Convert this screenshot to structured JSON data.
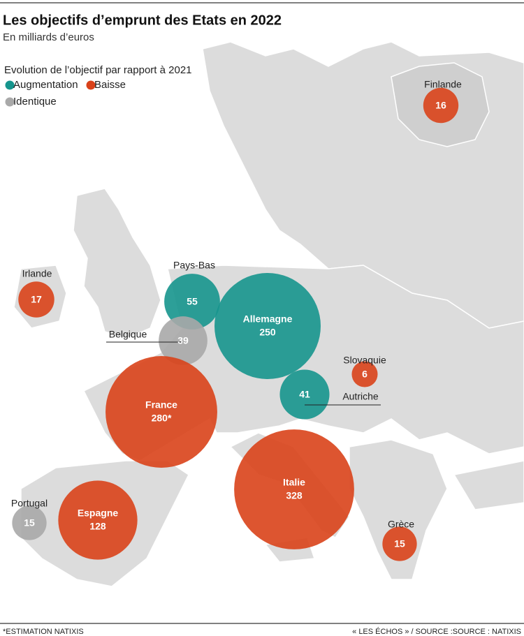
{
  "header": {
    "title": "Les objectifs d’emprunt des Etats en 2022",
    "subtitle": "En milliards d’euros"
  },
  "legend": {
    "title": "Evolution de l’objectif par rapport à 2021",
    "items": [
      {
        "label": "Augmentation",
        "color": "#16958d"
      },
      {
        "label": "Baisse",
        "color": "#d9421a"
      },
      {
        "label": "Identique",
        "color": "#a9a9a9"
      }
    ]
  },
  "bubbles": [
    {
      "name": "Finlande",
      "value": 16,
      "color": "#d9421a"
    },
    {
      "name": "Irlande",
      "value": 17,
      "color": "#d9421a"
    },
    {
      "name": "Pays-Bas",
      "value": 55,
      "color": "#16958d"
    },
    {
      "name": "Belgique",
      "value": 39,
      "color": "#a9a9a9"
    },
    {
      "name": "Allemagne",
      "value": 250,
      "color": "#16958d"
    },
    {
      "name": "France",
      "value": 280,
      "value_label": "280*",
      "color": "#d9421a"
    },
    {
      "name": "Slovaquie",
      "value": 6,
      "color": "#d9421a"
    },
    {
      "name": "Autriche",
      "value": 41,
      "color": "#16958d"
    },
    {
      "name": "Portugal",
      "value": 15,
      "color": "#a9a9a9"
    },
    {
      "name": "Espagne",
      "value": 128,
      "color": "#d9421a"
    },
    {
      "name": "Italie",
      "value": 328,
      "color": "#d9421a"
    },
    {
      "name": "Grèce",
      "value": 15,
      "color": "#d9421a"
    }
  ],
  "footer": {
    "note": "*ESTIMATION NATIXIS",
    "source": "« LES ÉCHOS » / SOURCE :SOURCE : NATIXIS"
  }
}
